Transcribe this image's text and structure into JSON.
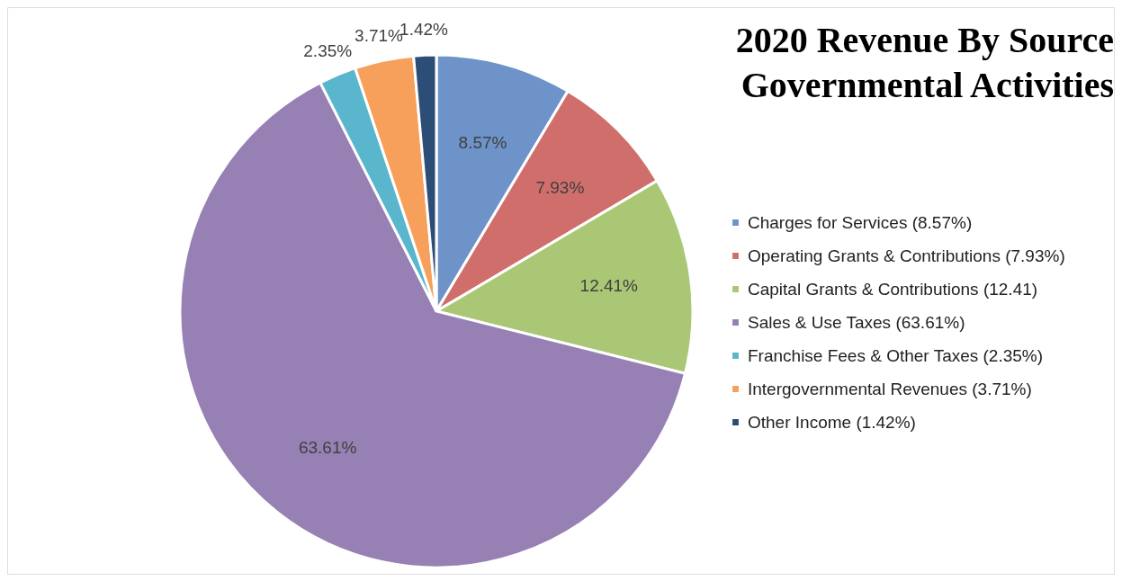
{
  "chart_data": {
    "type": "pie",
    "title": "2020 Revenue By Source\nGovernmental Activities",
    "categories": [
      "Charges for Services (8.57%)",
      "Operating Grants & Contributions (7.93%)",
      "Capital Grants & Contributions (12.41)",
      "Sales & Use Taxes (63.61%)",
      "Franchise Fees & Other Taxes (2.35%)",
      "Intergovernmental Revenues (3.71%)",
      "Other Income (1.42%)"
    ],
    "values": [
      8.57,
      7.93,
      12.41,
      63.61,
      2.35,
      3.71,
      1.42
    ],
    "colors": [
      "#6d93c9",
      "#cf6e6b",
      "#aac775",
      "#9680b4",
      "#5ab6cc",
      "#f7a05c",
      "#2c4d75"
    ],
    "value_labels": [
      "8.57%",
      "7.93%",
      "12.41%",
      "63.61%",
      "2.35%",
      "3.71%",
      "1.42%"
    ],
    "legend": "right"
  }
}
